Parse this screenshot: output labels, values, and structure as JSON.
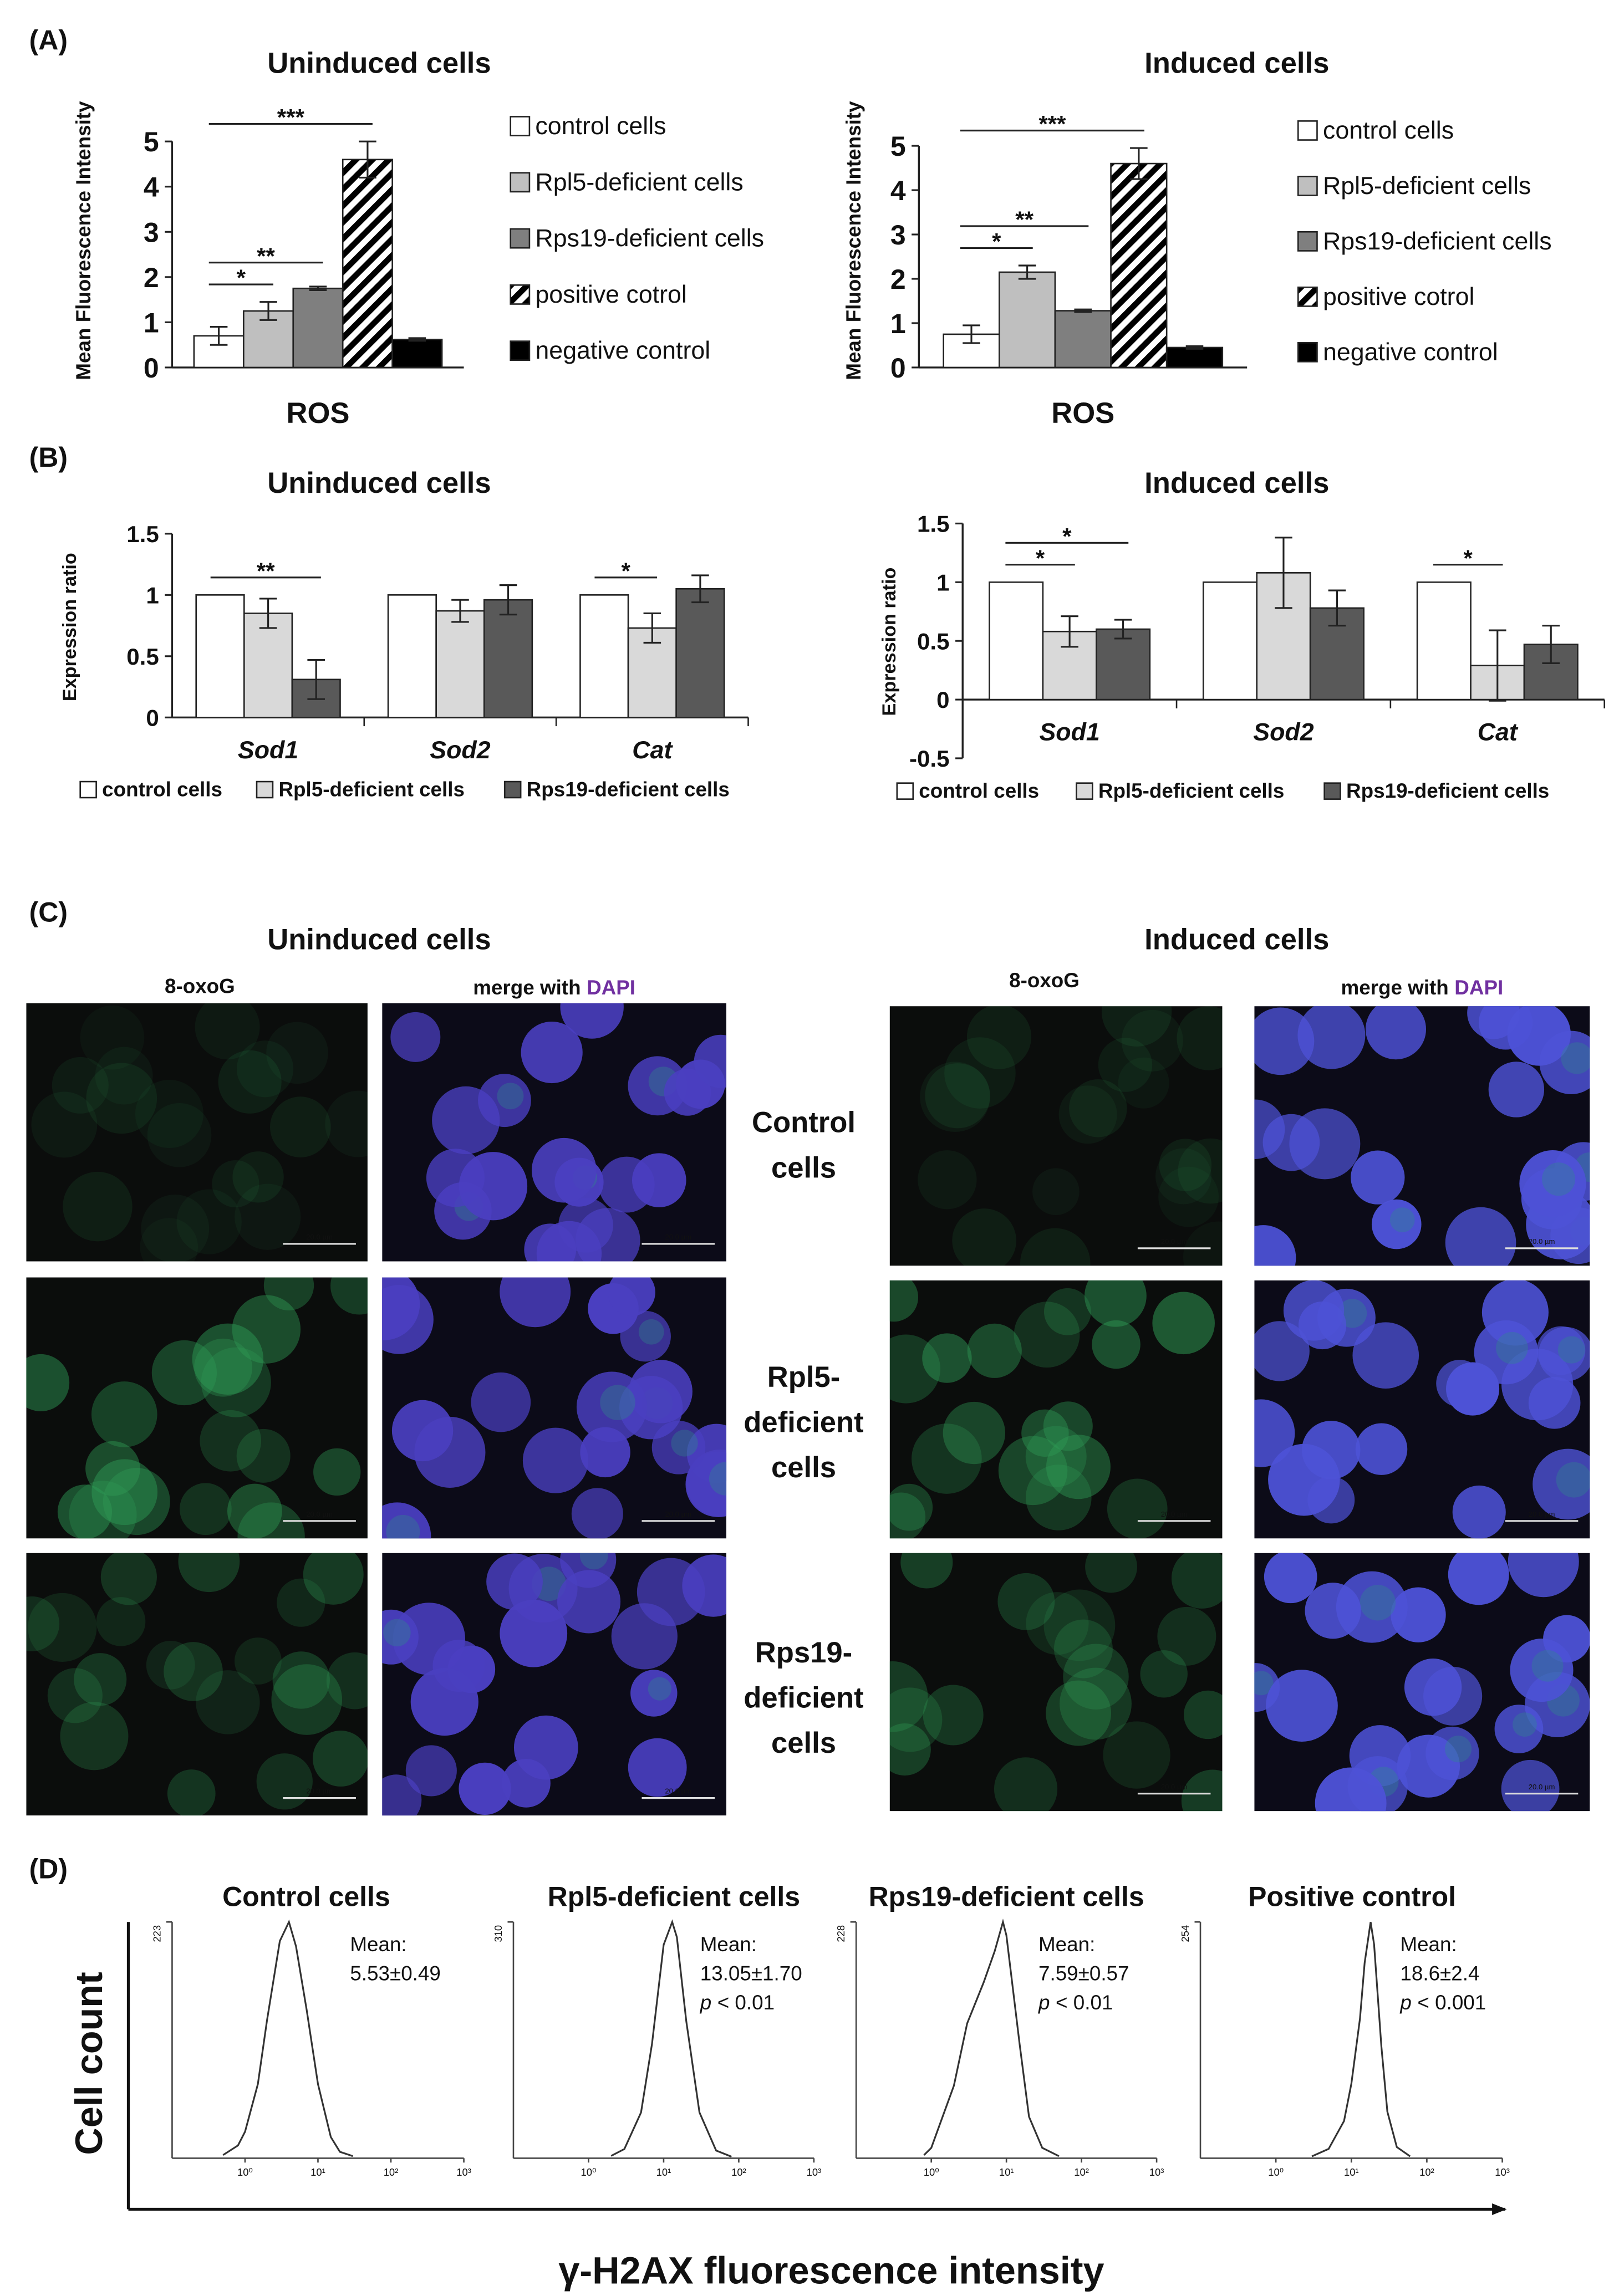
{
  "panel_labels": [
    "(A)",
    "(B)",
    "(C)",
    "(D)"
  ],
  "chart_data": [
    {
      "type": "bar",
      "title": "Uninduced cells",
      "ylabel": "Mean Fluorescence Intensity",
      "categories": [
        "ROS"
      ],
      "ylim": [
        0,
        5
      ],
      "yticks": [
        0,
        1,
        2,
        3,
        4,
        5
      ],
      "legend": "right",
      "series": [
        {
          "name": "control cells",
          "color": "#ffffff",
          "values": [
            0.7
          ],
          "errors": [
            0.2
          ]
        },
        {
          "name": "Rpl5-deficient cells",
          "color": "#bfbfbf",
          "values": [
            1.25
          ],
          "errors": [
            0.2
          ]
        },
        {
          "name": "Rps19-deficient cells",
          "color": "#7f7f7f",
          "values": [
            1.75
          ],
          "errors": [
            0.04
          ]
        },
        {
          "name": "positive cotrol",
          "color": "#ffffff",
          "hatch": true,
          "values": [
            4.6
          ],
          "errors": [
            0.4
          ]
        },
        {
          "name": "negative control",
          "color": "#000000",
          "values": [
            0.62
          ],
          "errors": [
            0.03
          ]
        }
      ],
      "annotations": [
        {
          "text": "*",
          "category": 0,
          "between": [
            0,
            1
          ]
        },
        {
          "text": "**",
          "category": 0,
          "between": [
            0,
            2
          ]
        },
        {
          "text": "***",
          "category": 0,
          "between": [
            0,
            3
          ]
        }
      ]
    },
    {
      "type": "bar",
      "title": "Induced cells",
      "ylabel": "Mean Fluorescence Intensity",
      "categories": [
        "ROS"
      ],
      "ylim": [
        0,
        5
      ],
      "yticks": [
        0,
        1,
        2,
        3,
        4,
        5
      ],
      "legend": "right",
      "series": [
        {
          "name": "control cells",
          "color": "#ffffff",
          "values": [
            0.75
          ],
          "errors": [
            0.2
          ]
        },
        {
          "name": "Rpl5-deficient cells",
          "color": "#bfbfbf",
          "values": [
            2.15
          ],
          "errors": [
            0.15
          ]
        },
        {
          "name": "Rps19-deficient cells",
          "color": "#7f7f7f",
          "values": [
            1.28
          ],
          "errors": [
            0.03
          ]
        },
        {
          "name": "positive cotrol",
          "color": "#ffffff",
          "hatch": true,
          "values": [
            4.6
          ],
          "errors": [
            0.35
          ]
        },
        {
          "name": "negative control",
          "color": "#000000",
          "values": [
            0.45
          ],
          "errors": [
            0.03
          ]
        }
      ],
      "annotations": [
        {
          "text": "*",
          "category": 0,
          "between": [
            0,
            1
          ]
        },
        {
          "text": "**",
          "category": 0,
          "between": [
            0,
            2
          ]
        },
        {
          "text": "***",
          "category": 0,
          "between": [
            0,
            3
          ]
        }
      ]
    },
    {
      "type": "bar",
      "title": "Uninduced cells",
      "ylabel": "Expression ratio",
      "categories": [
        "Sod1",
        "Sod2",
        "Cat"
      ],
      "ylim": [
        0,
        1.5
      ],
      "yticks": [
        0,
        0.5,
        1,
        1.5
      ],
      "legend": "bottom",
      "series": [
        {
          "name": "control cells",
          "color": "#ffffff",
          "values": [
            1,
            1,
            1
          ],
          "errors": [
            null,
            null,
            null
          ]
        },
        {
          "name": "Rpl5-deficient cells",
          "color": "#d9d9d9",
          "values": [
            0.85,
            0.87,
            0.73
          ],
          "errors": [
            0.12,
            0.09,
            0.12
          ]
        },
        {
          "name": "Rps19-deficient cells",
          "color": "#595959",
          "values": [
            0.31,
            0.96,
            1.05
          ],
          "errors": [
            0.16,
            0.12,
            0.11
          ]
        }
      ],
      "annotations": [
        {
          "text": "**",
          "category": 0,
          "between": [
            0,
            2
          ]
        },
        {
          "text": "*",
          "category": 2,
          "between": [
            0,
            1
          ]
        }
      ]
    },
    {
      "type": "bar",
      "title": "Induced cells",
      "ylabel": "Expression ratio",
      "categories": [
        "Sod1",
        "Sod2",
        "Cat"
      ],
      "ylim": [
        -0.5,
        1.5
      ],
      "yticks": [
        -0.5,
        0,
        0.5,
        1,
        1.5
      ],
      "legend": "bottom",
      "series": [
        {
          "name": "control cells",
          "color": "#ffffff",
          "values": [
            1,
            1,
            1
          ],
          "errors": [
            null,
            null,
            null
          ]
        },
        {
          "name": "Rpl5-deficient cells",
          "color": "#d9d9d9",
          "values": [
            0.58,
            1.08,
            0.29
          ],
          "errors": [
            0.13,
            0.3,
            0.3
          ]
        },
        {
          "name": "Rps19-deficient cells",
          "color": "#595959",
          "values": [
            0.6,
            0.78,
            0.47
          ],
          "errors": [
            0.08,
            0.15,
            0.16
          ]
        }
      ],
      "annotations": [
        {
          "text": "*",
          "category": 0,
          "between": [
            0,
            1
          ]
        },
        {
          "text": "*",
          "category": 0,
          "between": [
            0,
            2
          ]
        },
        {
          "text": "*",
          "category": 2,
          "between": [
            0,
            1
          ]
        }
      ]
    },
    {
      "type": "line",
      "title": "Control cells",
      "log_x": true,
      "color": "#333333",
      "x": [
        0.5,
        0.8,
        1,
        1.5,
        2,
        3,
        4,
        5,
        7,
        10,
        15,
        20,
        30
      ],
      "values": [
        3,
        12,
        25,
        70,
        130,
        205,
        223,
        200,
        140,
        70,
        20,
        6,
        2
      ],
      "xlim": [
        0.1,
        1000
      ],
      "xticks": [
        {
          "value": 1,
          "label": "10⁰"
        },
        {
          "value": 10,
          "label": "10¹"
        },
        {
          "value": 100,
          "label": "10²"
        },
        {
          "value": 1000,
          "label": "10³"
        }
      ],
      "ylim": [
        0,
        223
      ],
      "yticks": [
        223
      ],
      "stats": [
        "Mean:",
        "5.53±0.49"
      ]
    },
    {
      "type": "line",
      "title": "Rpl5-deficient cells",
      "log_x": true,
      "color": "#333333",
      "x": [
        2,
        3,
        5,
        7,
        10,
        13,
        15,
        20,
        30,
        50,
        80
      ],
      "values": [
        3,
        12,
        60,
        150,
        280,
        310,
        290,
        180,
        60,
        10,
        2
      ],
      "xlim": [
        0.1,
        1000
      ],
      "xticks": [
        {
          "value": 1,
          "label": "10⁰"
        },
        {
          "value": 10,
          "label": "10¹"
        },
        {
          "value": 100,
          "label": "10²"
        },
        {
          "value": 1000,
          "label": "10³"
        }
      ],
      "ylim": [
        0,
        310
      ],
      "yticks": [
        310
      ],
      "stats": [
        "Mean:",
        "13.05±1.70"
      ],
      "p_label": "p",
      "p_value": "< 0.01"
    },
    {
      "type": "line",
      "title": "Rps19-deficient cells",
      "log_x": true,
      "color": "#333333",
      "x": [
        0.8,
        1,
        2,
        3,
        5,
        7,
        9,
        10,
        15,
        20,
        30,
        50
      ],
      "values": [
        3,
        10,
        70,
        130,
        170,
        200,
        228,
        215,
        110,
        40,
        10,
        2
      ],
      "xlim": [
        0.1,
        1000
      ],
      "xticks": [
        {
          "value": 1,
          "label": "10⁰"
        },
        {
          "value": 10,
          "label": "10¹"
        },
        {
          "value": 100,
          "label": "10²"
        },
        {
          "value": 1000,
          "label": "10³"
        }
      ],
      "ylim": [
        0,
        228
      ],
      "yticks": [
        228
      ],
      "stats": [
        "Mean:",
        "7.59±0.57"
      ],
      "p_label": "p",
      "p_value": "< 0.01"
    },
    {
      "type": "line",
      "title": "Positive control",
      "log_x": true,
      "color": "#333333",
      "x": [
        3,
        5,
        8,
        10,
        13,
        15,
        18,
        20,
        25,
        30,
        40,
        60
      ],
      "values": [
        2,
        10,
        40,
        80,
        150,
        210,
        254,
        230,
        120,
        50,
        12,
        2
      ],
      "xlim": [
        0.1,
        1000
      ],
      "xticks": [
        {
          "value": 1,
          "label": "10⁰"
        },
        {
          "value": 10,
          "label": "10¹"
        },
        {
          "value": 100,
          "label": "10²"
        },
        {
          "value": 1000,
          "label": "10³"
        }
      ],
      "ylim": [
        0,
        254
      ],
      "yticks": [
        254
      ],
      "stats": [
        "Mean:",
        "18.6±2.4"
      ],
      "p_label": "p",
      "p_value": "< 0.001"
    }
  ],
  "microscopy": {
    "panel_titles": [
      "Uninduced cells",
      "Induced cells"
    ],
    "channel_label": "8-oxoG",
    "merge_label": "merge with",
    "dapi_label": "DAPI",
    "row_labels": [
      [
        "Control",
        "cells"
      ],
      [
        "Rpl5-",
        "deficient",
        "cells"
      ],
      [
        "Rps19-",
        "deficient",
        "cells"
      ]
    ],
    "scale_bar": "20.0 µm"
  },
  "histogram_axes": {
    "ylabel": "Cell count",
    "xlabel": "γ-H2AX fluorescence intensity"
  }
}
